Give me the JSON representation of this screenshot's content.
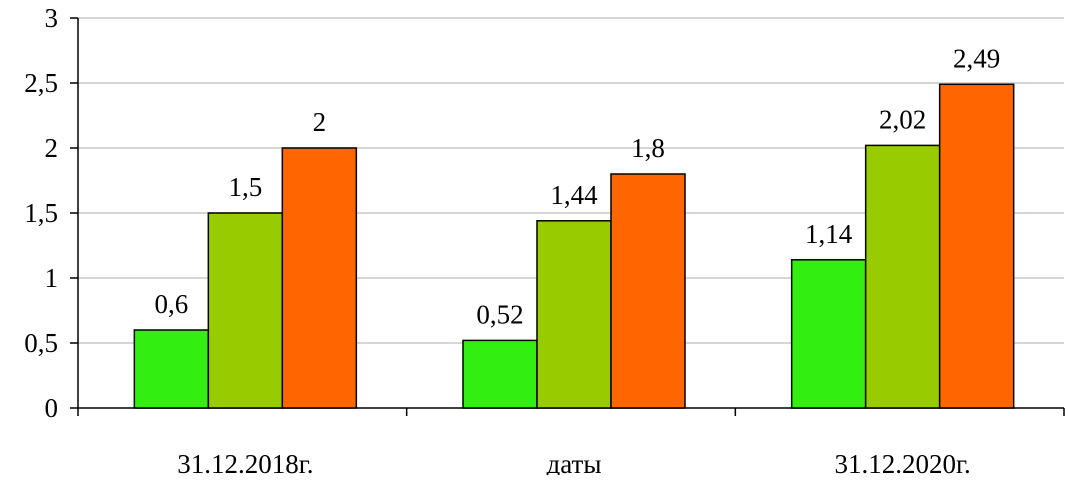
{
  "chart_data": {
    "type": "bar",
    "title": "",
    "xlabel": "",
    "ylabel": "",
    "categories": [
      "31.12.2018г.",
      "даты",
      "31.12.2020г."
    ],
    "series": [
      {
        "values": [
          0.6,
          0.52,
          1.14
        ],
        "labels": [
          "0,6",
          "0,52",
          "1,14"
        ],
        "color": "#33ee11"
      },
      {
        "values": [
          1.5,
          1.44,
          2.02
        ],
        "labels": [
          "1,5",
          "1,44",
          "2,02"
        ],
        "color": "#99cc00"
      },
      {
        "values": [
          2.0,
          1.8,
          2.49
        ],
        "labels": [
          "2",
          "1,8",
          "2,49"
        ],
        "color": "#ff6600"
      }
    ],
    "ylim": [
      0,
      3
    ],
    "yticks": [
      0,
      0.5,
      1,
      1.5,
      2,
      2.5,
      3
    ],
    "ytick_labels": [
      "0",
      "0,5",
      "1",
      "1,5",
      "2",
      "2,5",
      "3"
    ],
    "grid": true,
    "legend": "none"
  }
}
